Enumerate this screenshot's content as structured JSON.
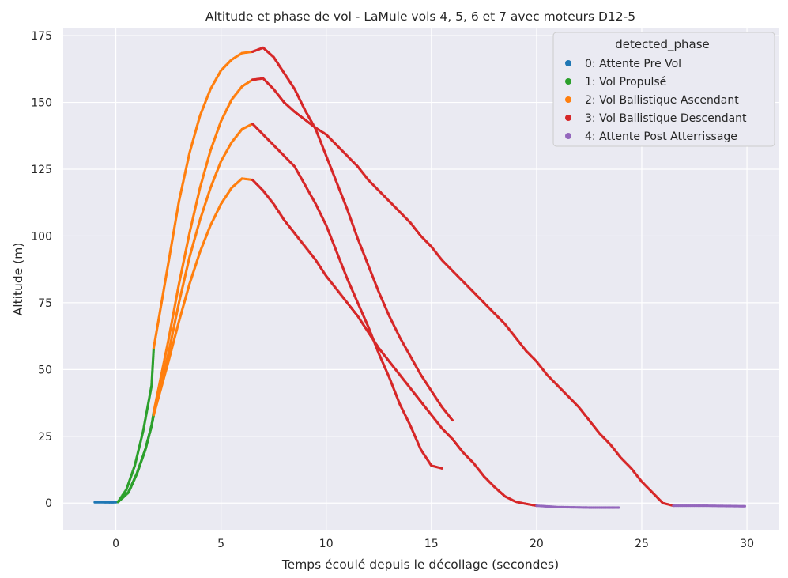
{
  "chart_data": {
    "type": "scatter",
    "title": "Altitude et phase de vol - LaMule vols 4, 5, 6 et 7 avec moteurs D12-5",
    "xlabel": "Temps écoulé depuis le décollage (secondes)",
    "ylabel": "Altitude (m)",
    "xlim": [
      -2.5,
      31.5
    ],
    "ylim": [
      -10,
      178
    ],
    "xticks": [
      0,
      5,
      10,
      15,
      20,
      25,
      30
    ],
    "yticks": [
      0,
      25,
      50,
      75,
      100,
      125,
      150,
      175
    ],
    "grid": true,
    "legend": {
      "title": "detected_phase",
      "placement": "top-right",
      "entries": [
        {
          "label": "0: Attente Pre Vol",
          "color": "#1f77b4"
        },
        {
          "label": "1: Vol Propulsé",
          "color": "#2ca02c"
        },
        {
          "label": "2: Vol Ballistique Ascendant",
          "color": "#ff7f0e"
        },
        {
          "label": "3: Vol Ballistique Descendant",
          "color": "#d62728"
        },
        {
          "label": "4: Attente Post Atterrissage",
          "color": "#9467bd"
        }
      ]
    },
    "series": [
      {
        "phase0": [
          [
            -1.0,
            0.3
          ],
          [
            -0.5,
            0.3
          ],
          [
            0.0,
            0.3
          ],
          [
            0.1,
            0.4
          ]
        ],
        "phase1": [
          [
            0.1,
            0.4
          ],
          [
            0.5,
            5
          ],
          [
            0.9,
            14
          ],
          [
            1.3,
            27
          ],
          [
            1.7,
            44
          ],
          [
            1.8,
            58
          ]
        ],
        "phase2": [
          [
            1.8,
            58
          ],
          [
            2.5,
            90
          ],
          [
            3.0,
            113
          ],
          [
            3.5,
            131
          ],
          [
            4.0,
            145
          ],
          [
            4.5,
            155
          ],
          [
            5.0,
            162
          ],
          [
            5.5,
            166
          ],
          [
            6.0,
            168.5
          ],
          [
            6.5,
            169
          ]
        ],
        "phase3": [
          [
            6.5,
            169
          ],
          [
            7.0,
            170.5
          ],
          [
            7.5,
            167
          ],
          [
            8.0,
            161
          ],
          [
            8.5,
            155
          ],
          [
            9.0,
            147
          ],
          [
            9.5,
            140
          ],
          [
            10.0,
            130
          ],
          [
            10.5,
            120
          ],
          [
            11.0,
            110
          ],
          [
            11.5,
            99
          ],
          [
            12.0,
            89
          ],
          [
            12.5,
            79
          ],
          [
            13.0,
            70
          ],
          [
            13.5,
            62
          ],
          [
            14.0,
            55
          ],
          [
            14.5,
            48
          ],
          [
            15.0,
            42
          ],
          [
            15.5,
            36
          ],
          [
            16.0,
            31
          ]
        ],
        "phase4": []
      },
      {
        "phase0": [
          [
            -0.5,
            0.3
          ],
          [
            0.1,
            0.4
          ]
        ],
        "phase1": [
          [
            0.1,
            0.4
          ],
          [
            0.6,
            4
          ],
          [
            1.0,
            11
          ],
          [
            1.4,
            20
          ],
          [
            1.7,
            29
          ],
          [
            1.8,
            34
          ]
        ],
        "phase2": [
          [
            1.8,
            34
          ],
          [
            2.5,
            61
          ],
          [
            3.0,
            82
          ],
          [
            3.5,
            101
          ],
          [
            4.0,
            118
          ],
          [
            4.5,
            132
          ],
          [
            5.0,
            143
          ],
          [
            5.5,
            151
          ],
          [
            6.0,
            156
          ],
          [
            6.5,
            158.5
          ]
        ],
        "phase3": [
          [
            6.5,
            158.5
          ],
          [
            7.0,
            159
          ],
          [
            7.5,
            155
          ],
          [
            8.0,
            150
          ],
          [
            8.5,
            146.5
          ],
          [
            9.0,
            143.5
          ],
          [
            9.5,
            140.5
          ],
          [
            10.0,
            138
          ],
          [
            10.5,
            134
          ],
          [
            11.0,
            130
          ],
          [
            11.5,
            126
          ],
          [
            12.0,
            121
          ],
          [
            12.5,
            117
          ],
          [
            13.0,
            113
          ],
          [
            13.5,
            109
          ],
          [
            14.0,
            105
          ],
          [
            14.5,
            100
          ],
          [
            15.0,
            96
          ],
          [
            15.5,
            91
          ],
          [
            16.0,
            87
          ],
          [
            16.5,
            83
          ],
          [
            17.0,
            79
          ],
          [
            17.5,
            75
          ],
          [
            18.0,
            71
          ],
          [
            18.5,
            67
          ],
          [
            19.0,
            62
          ],
          [
            19.5,
            57
          ],
          [
            20.0,
            53
          ],
          [
            20.5,
            48
          ],
          [
            21.0,
            44
          ],
          [
            21.5,
            40
          ],
          [
            22.0,
            36
          ],
          [
            22.5,
            31
          ],
          [
            23.0,
            26
          ],
          [
            23.5,
            22
          ],
          [
            24.0,
            17
          ],
          [
            24.5,
            13
          ],
          [
            25.0,
            8
          ],
          [
            25.5,
            4
          ],
          [
            26.0,
            0
          ],
          [
            26.5,
            -1.0
          ]
        ],
        "phase4": [
          [
            26.5,
            -1.0
          ],
          [
            28.0,
            -1.0
          ],
          [
            29.9,
            -1.2
          ]
        ]
      },
      {
        "phase0": [
          [
            -0.3,
            0.3
          ],
          [
            0.1,
            0.4
          ]
        ],
        "phase1": [
          [
            0.1,
            0.4
          ],
          [
            0.6,
            4
          ],
          [
            1.0,
            11
          ],
          [
            1.4,
            20
          ],
          [
            1.7,
            29
          ],
          [
            1.8,
            33
          ]
        ],
        "phase2": [
          [
            1.8,
            33
          ],
          [
            2.5,
            56
          ],
          [
            3.0,
            75
          ],
          [
            3.5,
            92
          ],
          [
            4.0,
            106
          ],
          [
            4.5,
            118
          ],
          [
            5.0,
            128
          ],
          [
            5.5,
            135
          ],
          [
            6.0,
            140
          ],
          [
            6.5,
            142
          ]
        ],
        "phase3": [
          [
            6.5,
            142
          ],
          [
            7.0,
            138
          ],
          [
            7.5,
            134
          ],
          [
            8.0,
            130
          ],
          [
            8.5,
            126
          ],
          [
            9.0,
            119
          ],
          [
            9.5,
            112
          ],
          [
            10.0,
            104
          ],
          [
            10.5,
            94
          ],
          [
            11.0,
            84
          ],
          [
            11.5,
            75
          ],
          [
            12.0,
            66
          ],
          [
            12.5,
            56
          ],
          [
            13.0,
            47
          ],
          [
            13.5,
            37
          ],
          [
            14.0,
            29
          ],
          [
            14.5,
            20
          ],
          [
            15.0,
            14
          ],
          [
            15.5,
            13
          ]
        ],
        "phase4": []
      },
      {
        "phase0": [
          [
            -0.2,
            0.3
          ],
          [
            0.1,
            0.4
          ]
        ],
        "phase1": [
          [
            0.1,
            0.4
          ],
          [
            0.6,
            4
          ],
          [
            1.0,
            11
          ],
          [
            1.4,
            20
          ],
          [
            1.7,
            29
          ],
          [
            1.8,
            33
          ]
        ],
        "phase2": [
          [
            1.8,
            33
          ],
          [
            2.5,
            53
          ],
          [
            3.0,
            68
          ],
          [
            3.5,
            82
          ],
          [
            4.0,
            94
          ],
          [
            4.5,
            104
          ],
          [
            5.0,
            112
          ],
          [
            5.5,
            118
          ],
          [
            6.0,
            121.5
          ],
          [
            6.5,
            121
          ]
        ],
        "phase3": [
          [
            6.5,
            121
          ],
          [
            7.0,
            117
          ],
          [
            7.5,
            112
          ],
          [
            8.0,
            106
          ],
          [
            8.5,
            101
          ],
          [
            9.0,
            96
          ],
          [
            9.5,
            91
          ],
          [
            10.0,
            85
          ],
          [
            10.5,
            80
          ],
          [
            11.0,
            75
          ],
          [
            11.5,
            70
          ],
          [
            12.0,
            64
          ],
          [
            12.5,
            58
          ],
          [
            13.0,
            53
          ],
          [
            13.5,
            48
          ],
          [
            14.0,
            43
          ],
          [
            14.5,
            38
          ],
          [
            15.0,
            33
          ],
          [
            15.5,
            28
          ],
          [
            16.0,
            24
          ],
          [
            16.5,
            19
          ],
          [
            17.0,
            15
          ],
          [
            17.5,
            10
          ],
          [
            18.0,
            6
          ],
          [
            18.5,
            2.5
          ],
          [
            19.0,
            0.5
          ],
          [
            19.5,
            -0.3
          ],
          [
            20.0,
            -1.0
          ]
        ],
        "phase4": [
          [
            20.0,
            -1.0
          ],
          [
            21.0,
            -1.5
          ],
          [
            22.5,
            -1.7
          ],
          [
            23.9,
            -1.7
          ]
        ]
      }
    ]
  },
  "colors": {
    "background_plot": "#eaeaf2",
    "grid": "#ffffff",
    "text": "#262626",
    "phase0": "#1f77b4",
    "phase1": "#2ca02c",
    "phase2": "#ff7f0e",
    "phase3": "#d62728",
    "phase4": "#9467bd"
  }
}
